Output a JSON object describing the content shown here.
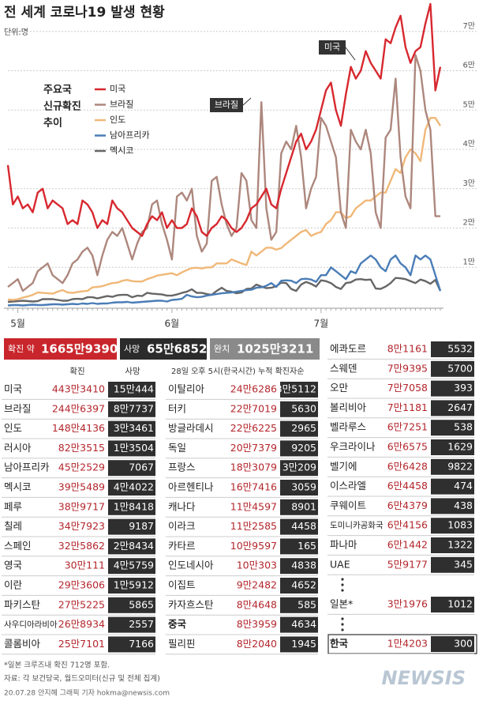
{
  "header": {
    "title": "전 세계 코로나19 발생 현황",
    "unit": "단위:명"
  },
  "chart_data": {
    "type": "line",
    "legend_title": [
      "주요국",
      "신규확진",
      "추이"
    ],
    "annotations": [
      "미국",
      "브라질"
    ],
    "categories": [
      null,
      null,
      "5월",
      null,
      null,
      null,
      null,
      null,
      null,
      null,
      null,
      null,
      null,
      null,
      null,
      null,
      null,
      null,
      null,
      null,
      null,
      null,
      null,
      null,
      null,
      null,
      null,
      null,
      null,
      null,
      null,
      null,
      null,
      "6월",
      null,
      null,
      null,
      null,
      null,
      null,
      null,
      null,
      null,
      null,
      null,
      null,
      null,
      null,
      null,
      null,
      null,
      null,
      null,
      null,
      null,
      null,
      null,
      null,
      null,
      null,
      null,
      null,
      null,
      "7월",
      null,
      null,
      null,
      null,
      null,
      null,
      null,
      null,
      null,
      null,
      null,
      null,
      null,
      null,
      null,
      null,
      null,
      null,
      null,
      null,
      null,
      null,
      null,
      null
    ],
    "ylim": [
      0,
      78000
    ],
    "yticks": [
      {
        "value": 10000,
        "label": "1만"
      },
      {
        "value": 20000,
        "label": "2만"
      },
      {
        "value": 30000,
        "label": "3만"
      },
      {
        "value": 40000,
        "label": "4만"
      },
      {
        "value": 50000,
        "label": "5만"
      },
      {
        "value": 60000,
        "label": "6만"
      },
      {
        "value": 70000,
        "label": "7만"
      }
    ],
    "grid": true,
    "series": [
      {
        "name": "미국",
        "color": "#d7282f",
        "values": [
          36000,
          26000,
          28000,
          25000,
          26000,
          24000,
          29000,
          30000,
          25000,
          27000,
          26000,
          25000,
          21000,
          22000,
          21000,
          27000,
          26000,
          24000,
          20000,
          22000,
          21000,
          27000,
          25000,
          24000,
          22000,
          20000,
          19000,
          18000,
          21000,
          23000,
          22000,
          24000,
          20000,
          22000,
          20000,
          20000,
          21000,
          25000,
          23000,
          19000,
          18000,
          20000,
          21000,
          23000,
          22000,
          20000,
          19000,
          20000,
          22000,
          25000,
          26000,
          28000,
          30000,
          26000,
          25000,
          30000,
          34000,
          38000,
          42000,
          44000,
          40000,
          42000,
          45000,
          50000,
          55000,
          57000,
          50000,
          46000,
          54000,
          61000,
          58000,
          60000,
          65000,
          62000,
          60000,
          58000,
          68000,
          67000,
          71000,
          74000,
          66000,
          62000,
          65000,
          66000,
          72000,
          77000,
          55000,
          61000
        ]
      },
      {
        "name": "브라질",
        "color": "#ad877d",
        "values": [
          5000,
          6000,
          7000,
          4000,
          5000,
          6000,
          9000,
          10000,
          11000,
          8000,
          7000,
          6000,
          8000,
          11000,
          12000,
          14000,
          15000,
          13000,
          8000,
          13000,
          17000,
          19000,
          18000,
          20000,
          16000,
          12000,
          16000,
          19000,
          20000,
          26000,
          27000,
          21000,
          17000,
          12000,
          28000,
          29000,
          27000,
          30000,
          18000,
          14000,
          16000,
          32000,
          33000,
          26000,
          21000,
          18000,
          20000,
          34000,
          32000,
          22000,
          20000,
          52000,
          25000,
          17000,
          19000,
          39000,
          42000,
          40000,
          46000,
          38000,
          25000,
          30000,
          33000,
          48000,
          46000,
          42000,
          38000,
          24000,
          20000,
          45000,
          42000,
          40000,
          45000,
          39000,
          24000,
          20000,
          43000,
          45000,
          58000,
          38000,
          28000,
          25000,
          64000,
          60000,
          50000,
          45000,
          23000,
          23000
        ]
      },
      {
        "name": "인도",
        "color": "#f0b878",
        "values": [
          1800,
          1700,
          1900,
          2300,
          2600,
          3000,
          3600,
          3500,
          3400,
          3300,
          3800,
          4200,
          3600,
          3500,
          3700,
          3900,
          4000,
          4900,
          5000,
          5200,
          5600,
          6000,
          6100,
          6600,
          6800,
          6500,
          6400,
          6400,
          7000,
          7400,
          7900,
          8100,
          8300,
          8500,
          8000,
          8700,
          9300,
          9800,
          9900,
          9700,
          10000,
          10000,
          11000,
          11000,
          11000,
          12000,
          11500,
          11000,
          10600,
          14000,
          13000,
          14000,
          15000,
          15000,
          14500,
          14900,
          16000,
          17000,
          18000,
          19000,
          19500,
          18000,
          18600,
          19000,
          21000,
          22000,
          24000,
          24000,
          22500,
          23000,
          25000,
          26000,
          27000,
          27000,
          28000,
          29000,
          29000,
          32000,
          35000,
          34000,
          38000,
          40000,
          39000,
          37000,
          45000,
          48000,
          48000,
          46000
        ]
      },
      {
        "name": "남아프리카",
        "color": "#4a7db7",
        "values": [
          300,
          400,
          400,
          300,
          400,
          500,
          400,
          400,
          500,
          600,
          600,
          500,
          600,
          700,
          600,
          800,
          700,
          900,
          700,
          800,
          800,
          1000,
          1100,
          1100,
          1200,
          1000,
          1100,
          1200,
          1300,
          1400,
          1500,
          1500,
          1300,
          1700,
          1800,
          2000,
          3000,
          2600,
          2400,
          2500,
          2800,
          3000,
          3200,
          3400,
          3500,
          3600,
          3800,
          4000,
          4200,
          4300,
          4800,
          4900,
          5300,
          6000,
          5000,
          6600,
          6700,
          6600,
          6000,
          7000,
          7100,
          6900,
          6300,
          8000,
          8000,
          10000,
          9000,
          8000,
          7000,
          9000,
          8500,
          11000,
          12000,
          13000,
          12000,
          10000,
          9000,
          12000,
          13000,
          11000,
          10000,
          8000,
          13000,
          12000,
          13000,
          12000,
          8000,
          4000
        ]
      },
      {
        "name": "멕시코",
        "color": "#666666",
        "values": [
          1200,
          1300,
          1400,
          1500,
          1400,
          1300,
          1400,
          1900,
          1900,
          1900,
          1700,
          1500,
          1500,
          1900,
          2000,
          1900,
          2400,
          2400,
          2100,
          2400,
          2700,
          2500,
          2900,
          3000,
          3000,
          2400,
          2800,
          2700,
          3500,
          3300,
          3200,
          3100,
          2800,
          2800,
          3100,
          3500,
          3800,
          4400,
          3500,
          3500,
          3200,
          3000,
          4000,
          4800,
          4000,
          3800,
          3400,
          3600,
          4500,
          4600,
          5600,
          5100,
          4700,
          4800,
          5200,
          6100,
          6000,
          4500,
          4000,
          5600,
          6300,
          5800,
          5100,
          6700,
          6500,
          6000,
          5000,
          4500,
          6000,
          6200,
          6900,
          7000,
          6800,
          6900,
          4600,
          4500,
          5100,
          6000,
          7300,
          7200,
          7000,
          6500,
          6000,
          6900,
          6500,
          5800,
          6800,
          4000
        ]
      }
    ]
  },
  "summary": [
    {
      "label": "확진 약",
      "value": "1665만9390"
    },
    {
      "label": "사망",
      "value": "65만6852"
    },
    {
      "label": "완치",
      "value": "1025만3211"
    }
  ],
  "table_left": {
    "headers": [
      "확진",
      "사망"
    ],
    "rows": [
      [
        "미국",
        "443만3410",
        "15만444"
      ],
      [
        "브라질",
        "244만6397",
        "8만7737"
      ],
      [
        "인도",
        "148만4136",
        "3만3461"
      ],
      [
        "러시아",
        "82만3515",
        "1만3504"
      ],
      [
        "남아프리카",
        "45만2529",
        "7067"
      ],
      [
        "멕시코",
        "39만5489",
        "4만4022"
      ],
      [
        "페루",
        "38만9717",
        "1만8418"
      ],
      [
        "칠레",
        "34만7923",
        "9187"
      ],
      [
        "스페인",
        "32만5862",
        "2만8434"
      ],
      [
        "영국",
        "30만111",
        "4만5759"
      ],
      [
        "이란",
        "29만3606",
        "1만5912"
      ],
      [
        "파키스탄",
        "27만5225",
        "5865"
      ],
      [
        "사우디아라비아",
        "26만8934",
        "2557"
      ],
      [
        "콜롬비아",
        "25만7101",
        "7166"
      ]
    ]
  },
  "table_middle": {
    "caption": "28일 오후 5시(한국시간) 누적 확진자순",
    "rows": [
      [
        "이탈리아",
        "24만6286",
        "3만5112"
      ],
      [
        "터키",
        "22만7019",
        "5630"
      ],
      [
        "방글라데시",
        "22만6225",
        "2965"
      ],
      [
        "독일",
        "20만7379",
        "9205"
      ],
      [
        "프랑스",
        "18만3079",
        "3만209"
      ],
      [
        "아르헨티나",
        "16만7416",
        "3059"
      ],
      [
        "캐나다",
        "11만4597",
        "8901"
      ],
      [
        "이라크",
        "11만2585",
        "4458"
      ],
      [
        "카타르",
        "10만9597",
        "165"
      ],
      [
        "인도네시아",
        "10만303",
        "4838"
      ],
      [
        "이집트",
        "9만2482",
        "4652"
      ],
      [
        "카자흐스탄",
        "8만4648",
        "585"
      ],
      [
        "중국",
        "8만3959",
        "4634"
      ],
      [
        "필리핀",
        "8만2040",
        "1945"
      ]
    ]
  },
  "table_right": {
    "rows": [
      [
        "에콰도르",
        "8만1161",
        "5532"
      ],
      [
        "스웨덴",
        "7만9395",
        "5700"
      ],
      [
        "오만",
        "7만7058",
        "393"
      ],
      [
        "볼리비아",
        "7만1181",
        "2647"
      ],
      [
        "벨라루스",
        "6만7251",
        "538"
      ],
      [
        "우크라이나",
        "6만6575",
        "1629"
      ],
      [
        "벨기에",
        "6만6428",
        "9822"
      ],
      [
        "이스라엘",
        "6만4458",
        "474"
      ],
      [
        "쿠웨이트",
        "6만4379",
        "438"
      ],
      [
        "도미니카공화국",
        "6만4156",
        "1083"
      ],
      [
        "파나마",
        "6만1442",
        "1322"
      ],
      [
        "UAE",
        "5만9177",
        "345"
      ],
      [
        "일본*",
        "3만1976",
        "1012"
      ],
      [
        "한국",
        "1만4203",
        "300"
      ]
    ]
  },
  "footer": {
    "note": "*일본 크루즈내 확진 712명 포함.",
    "source": "자료: 각 보건당국, 월드오미터(신규 및 전체 집계)",
    "credit": "20.07.28 안지혜 그래픽 기자 hokma@newsis.com",
    "logo": "NEWSIS"
  }
}
